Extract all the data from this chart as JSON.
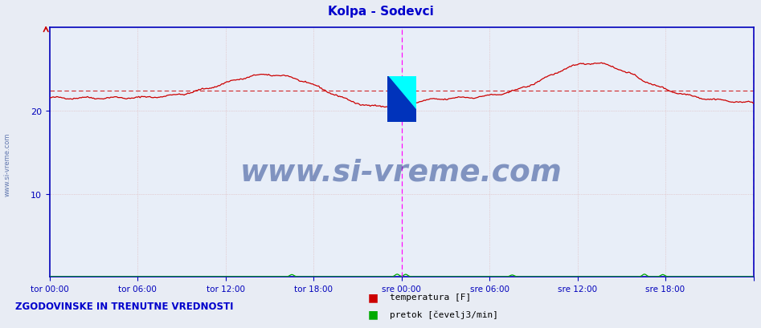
{
  "title": "Kolpa - Sodevci",
  "title_color": "#0000cc",
  "fig_bg_color": "#e8ecf4",
  "plot_bg_color": "#e8eef8",
  "grid_color": "#bbbbdd",
  "tick_color": "#0000aa",
  "watermark": "www.si-vreme.com",
  "watermark_color": "#1a3a8a",
  "sidebar_watermark": "www.si-vreme.com",
  "footer_text": "ZGODOVINSKE IN TRENUTNE VREDNOSTI",
  "footer_color": "#0000cc",
  "legend_labels": [
    "temperatura [F]",
    "pretok [čevelj3/min]"
  ],
  "legend_colors": [
    "#cc0000",
    "#00aa00"
  ],
  "avg_line_value": 22.4,
  "avg_line_color": "#cc0000",
  "ylim": [
    0,
    30
  ],
  "yticks": [
    10,
    20
  ],
  "magenta_color": "#ff00ff",
  "temp_line_color": "#cc0000",
  "pretok_line_color": "#00aa00",
  "border_color": "#0000bb",
  "title_fontsize": 11,
  "axis_fontsize": 8
}
